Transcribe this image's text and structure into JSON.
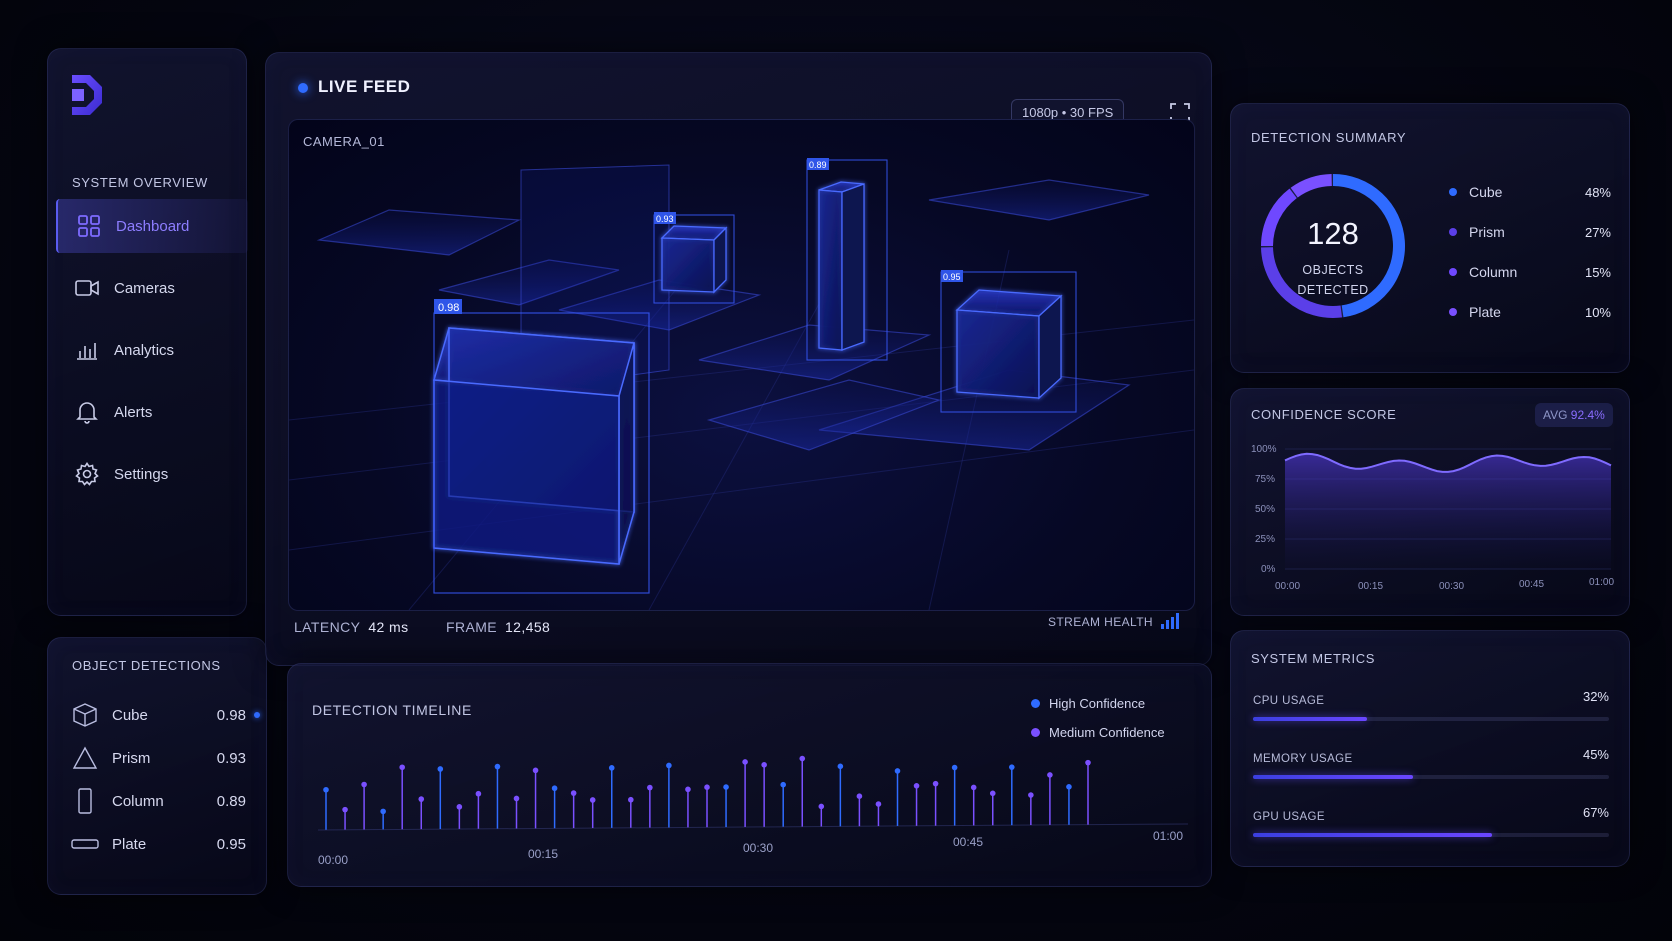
{
  "sidebar": {
    "section_title": "SYSTEM OVERVIEW",
    "items": [
      {
        "label": "Dashboard",
        "icon": "grid-icon",
        "active": true
      },
      {
        "label": "Cameras",
        "icon": "camera-icon",
        "active": false
      },
      {
        "label": "Analytics",
        "icon": "bar-chart-icon",
        "active": false
      },
      {
        "label": "Alerts",
        "icon": "bell-icon",
        "active": false
      },
      {
        "label": "Settings",
        "icon": "gear-icon",
        "active": false
      }
    ]
  },
  "object_detections": {
    "title": "OBJECT DETECTIONS",
    "items": [
      {
        "name": "Cube",
        "score": "0.98",
        "icon": "cube-icon",
        "active": true
      },
      {
        "name": "Prism",
        "score": "0.93",
        "icon": "triangle-icon",
        "active": false
      },
      {
        "name": "Column",
        "score": "0.89",
        "icon": "column-icon",
        "active": false
      },
      {
        "name": "Plate",
        "score": "0.95",
        "icon": "plate-icon",
        "active": false
      }
    ]
  },
  "live_feed": {
    "title": "LIVE FEED",
    "camera": "CAMERA_01",
    "resolution": "1080p • 30 FPS",
    "latency_label": "LATENCY",
    "latency_value": "42 ms",
    "frame_label": "FRAME",
    "frame_value": "12,458",
    "stream_health_label": "STREAM HEALTH",
    "box_scores": [
      "0.98",
      "0.93",
      "0.89",
      "0.95"
    ]
  },
  "timeline": {
    "title": "DETECTION TIMELINE",
    "legend": [
      "High Confidence",
      "Medium Confidence"
    ],
    "ticks": [
      "00:00",
      "00:15",
      "00:30",
      "00:45",
      "01:00"
    ]
  },
  "summary": {
    "title": "DETECTION SUMMARY",
    "total": "128",
    "total_label_1": "OBJECTS",
    "total_label_2": "DETECTED",
    "items": [
      {
        "name": "Cube",
        "pct": "48%",
        "value": 48,
        "color": "#2f6bff"
      },
      {
        "name": "Prism",
        "pct": "27%",
        "value": 27,
        "color": "#5b3fe8"
      },
      {
        "name": "Column",
        "pct": "15%",
        "value": 15,
        "color": "#6f48ff"
      },
      {
        "name": "Plate",
        "pct": "10%",
        "value": 10,
        "color": "#7a50ff"
      }
    ]
  },
  "confidence": {
    "title": "CONFIDENCE SCORE",
    "avg_label": "AVG",
    "avg_value": "92.4%",
    "y_ticks": [
      "100%",
      "75%",
      "50%",
      "25%",
      "0%"
    ],
    "x_ticks": [
      "00:00",
      "00:15",
      "00:30",
      "00:45",
      "01:00"
    ]
  },
  "metrics": {
    "title": "SYSTEM METRICS",
    "items": [
      {
        "label": "CPU USAGE",
        "pct": "32%",
        "value": 0.32
      },
      {
        "label": "MEMORY USAGE",
        "pct": "45%",
        "value": 0.45
      },
      {
        "label": "GPU USAGE",
        "pct": "67%",
        "value": 0.67
      }
    ]
  },
  "colors": {
    "accent_blue": "#2f6bff",
    "accent_purple": "#6a46ff"
  }
}
